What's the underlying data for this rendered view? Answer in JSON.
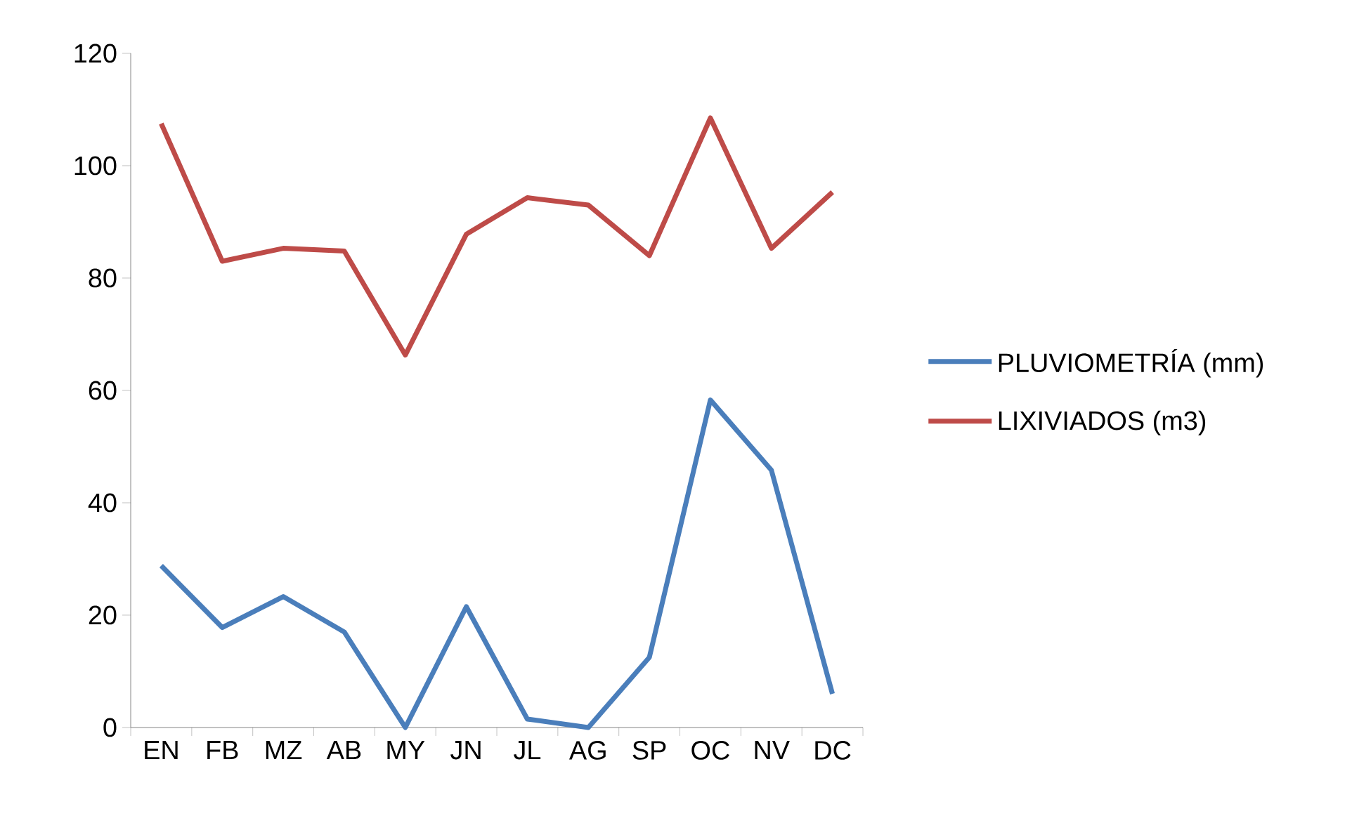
{
  "chart_data": {
    "type": "line",
    "categories": [
      "EN",
      "FB",
      "MZ",
      "AB",
      "MY",
      "JN",
      "JL",
      "AG",
      "SP",
      "OC",
      "NV",
      "DC"
    ],
    "ylim": [
      0,
      120
    ],
    "yticks": [
      0,
      20,
      40,
      60,
      80,
      100,
      120
    ],
    "grid": false,
    "legend": "right",
    "marker": "none",
    "line_style": "solid",
    "series": [
      {
        "name": "PLUVIOMETRÍA (mm)",
        "color": "#4a7ebb",
        "values": [
          28.8,
          17.8,
          23.3,
          17,
          0,
          21.5,
          1.5,
          0,
          12.5,
          58.3,
          45.8,
          6
        ]
      },
      {
        "name": "LIXIVIADOS (m3)",
        "color": "#be4b48",
        "values": [
          107.5,
          83,
          85.3,
          84.8,
          66.3,
          87.8,
          94.3,
          93,
          84,
          108.5,
          85.3,
          95.3
        ]
      }
    ]
  }
}
